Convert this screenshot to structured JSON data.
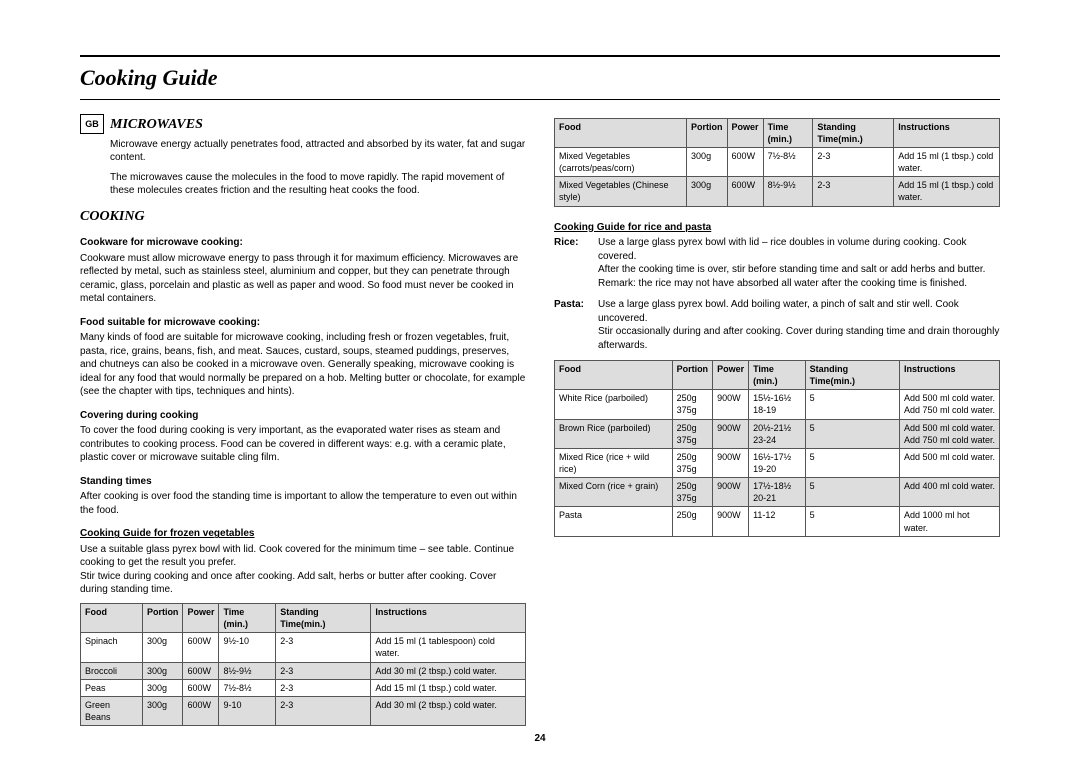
{
  "page_title": "Cooking Guide",
  "gb_badge": "GB",
  "page_number": "24",
  "left": {
    "sec1_title": "MICROWAVES",
    "sec1_p1": "Microwave energy actually penetrates food, attracted and absorbed by its water, fat and sugar content.",
    "sec1_p2": "The microwaves cause the molecules in the food to move rapidly. The rapid movement of these molecules creates friction and the resulting heat cooks the food.",
    "sec2_title": "COOKING",
    "sub1": "Cookware for microwave cooking:",
    "sub1_p": "Cookware must allow microwave energy to pass through it for maximum efficiency. Microwaves are reflected by metal, such as stainless steel, aluminium and copper, but they can penetrate through ceramic, glass, porcelain and plastic as well as paper and wood. So food must never be cooked in metal containers.",
    "sub2": "Food suitable for microwave cooking:",
    "sub2_p": "Many kinds of food are suitable for microwave cooking, including fresh or frozen vegetables, fruit, pasta, rice, grains, beans, fish, and meat. Sauces, custard, soups, steamed puddings, preserves, and chutneys can also be cooked in a microwave oven. Generally speaking, microwave cooking is ideal for any food that would normally be prepared on a hob. Melting butter or chocolate, for example (see the chapter with tips, techniques and hints).",
    "sub3": "Covering during cooking",
    "sub3_p": "To cover the food during cooking is very important, as the evaporated water rises as steam and contributes to cooking process. Food can be covered in different ways: e.g. with a ceramic plate, plastic cover or microwave suitable cling film.",
    "sub4": "Standing times",
    "sub4_p": "After cooking is over food the standing time is important to allow the temperature to even out within the food.",
    "sub5": "Cooking Guide for frozen vegetables",
    "sub5_p": "Use a suitable glass pyrex bowl with lid. Cook covered for the minimum time – see table. Continue cooking to get the result you prefer.\nStir twice during cooking and once after cooking. Add salt, herbs or butter after cooking. Cover during standing time.",
    "table1": {
      "headers": [
        "Food",
        "Portion",
        "Power",
        "Time (min.)",
        "Standing Time(min.)",
        "Instructions"
      ],
      "rows": [
        [
          "Spinach",
          "300g",
          "600W",
          "9½-10",
          "2-3",
          "Add 15 ml (1 tablespoon) cold water."
        ],
        [
          "Broccoli",
          "300g",
          "600W",
          "8½-9½",
          "2-3",
          "Add 30 ml (2 tbsp.) cold water."
        ],
        [
          "Peas",
          "300g",
          "600W",
          "7½-8½",
          "2-3",
          "Add 15 ml (1 tbsp.) cold water."
        ],
        [
          "Green Beans",
          "300g",
          "600W",
          "9-10",
          "2-3",
          "Add 30 ml (2 tbsp.) cold water."
        ]
      ]
    }
  },
  "right": {
    "table2": {
      "headers": [
        "Food",
        "Portion",
        "Power",
        "Time (min.)",
        "Standing Time(min.)",
        "Instructions"
      ],
      "rows": [
        [
          "Mixed Vegetables (carrots/peas/corn)",
          "300g",
          "600W",
          "7½-8½",
          "2-3",
          "Add 15 ml (1 tbsp.) cold water."
        ],
        [
          "Mixed Vegetables (Chinese style)",
          "300g",
          "600W",
          "8½-9½",
          "2-3",
          "Add 15 ml (1 tbsp.) cold water."
        ]
      ]
    },
    "sub6": "Cooking Guide for rice and pasta",
    "rice_label": "Rice:",
    "rice_p": "Use a large glass pyrex bowl with lid – rice doubles in volume during cooking. Cook covered.\nAfter the cooking time is over, stir before standing time and salt or add herbs and butter.\nRemark: the rice may not have absorbed all water after the cooking time is finished.",
    "pasta_label": "Pasta:",
    "pasta_p": "Use a large glass pyrex bowl. Add boiling water, a pinch of salt and stir well. Cook uncovered.\nStir occasionally during and after cooking. Cover during standing time and drain thoroughly afterwards.",
    "table3": {
      "headers": [
        "Food",
        "Portion",
        "Power",
        "Time (min.)",
        "Standing Time(min.)",
        "Instructions"
      ],
      "rows": [
        [
          "White Rice (parboiled)",
          "250g\n375g",
          "900W",
          "15½-16½\n18-19",
          "5",
          "Add 500 ml cold water.\nAdd 750 ml cold water."
        ],
        [
          "Brown Rice (parboiled)",
          "250g\n375g",
          "900W",
          "20½-21½\n23-24",
          "5",
          "Add 500 ml cold water.\nAdd 750 ml cold water."
        ],
        [
          "Mixed Rice (rice + wild rice)",
          "250g\n375g",
          "900W",
          "16½-17½\n19-20",
          "5",
          "Add 500 ml cold water."
        ],
        [
          "Mixed Corn (rice + grain)",
          "250g\n375g",
          "900W",
          "17½-18½\n20-21",
          "5",
          "Add 400 ml cold water."
        ],
        [
          "Pasta",
          "250g",
          "900W",
          "11-12",
          "5",
          "Add 1000 ml hot water."
        ]
      ]
    }
  }
}
